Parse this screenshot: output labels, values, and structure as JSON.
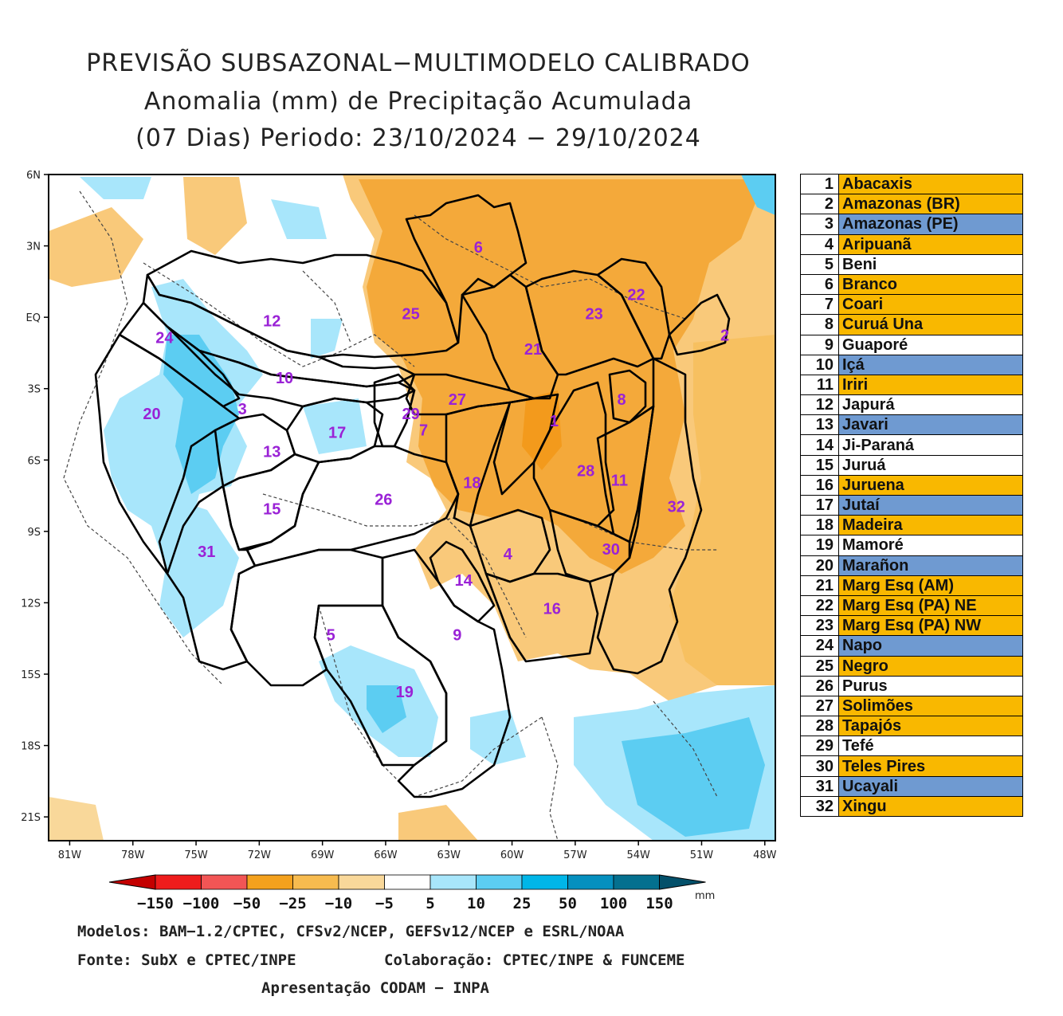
{
  "title": {
    "line1": "PREVISÃO SUBSAZONAL−MULTIMODELO CALIBRADO",
    "line2": "Anomalia (mm) de Precipitação Acumulada",
    "line3": "(07 Dias) Periodo: 23/10/2024 − 29/10/2024"
  },
  "map": {
    "lat_labels": [
      "6N",
      "3N",
      "EQ",
      "3S",
      "6S",
      "9S",
      "12S",
      "15S",
      "18S",
      "21S"
    ],
    "lon_labels": [
      "81W",
      "78W",
      "75W",
      "72W",
      "69W",
      "66W",
      "63W",
      "60W",
      "57W",
      "54W",
      "51W",
      "48W"
    ],
    "basins": [
      {
        "num": "1",
        "lon": -58.0,
        "lat": -4.4
      },
      {
        "num": "2",
        "lon": -49.9,
        "lat": -0.8
      },
      {
        "num": "3",
        "lon": -72.8,
        "lat": -3.9
      },
      {
        "num": "4",
        "lon": -60.2,
        "lat": -10.0
      },
      {
        "num": "5",
        "lon": -68.6,
        "lat": -13.4
      },
      {
        "num": "6",
        "lon": -61.6,
        "lat": 2.9
      },
      {
        "num": "7",
        "lon": -64.2,
        "lat": -4.8
      },
      {
        "num": "8",
        "lon": -54.8,
        "lat": -3.5
      },
      {
        "num": "9",
        "lon": -62.6,
        "lat": -13.4
      },
      {
        "num": "10",
        "lon": -70.8,
        "lat": -2.6
      },
      {
        "num": "11",
        "lon": -54.9,
        "lat": -6.9
      },
      {
        "num": "12",
        "lon": -71.4,
        "lat": -0.2
      },
      {
        "num": "13",
        "lon": -71.4,
        "lat": -5.7
      },
      {
        "num": "14",
        "lon": -62.3,
        "lat": -11.1
      },
      {
        "num": "15",
        "lon": -71.4,
        "lat": -8.1
      },
      {
        "num": "16",
        "lon": -58.1,
        "lat": -12.3
      },
      {
        "num": "17",
        "lon": -68.3,
        "lat": -4.9
      },
      {
        "num": "18",
        "lon": -61.9,
        "lat": -7.0
      },
      {
        "num": "19",
        "lon": -65.1,
        "lat": -15.8
      },
      {
        "num": "20",
        "lon": -77.1,
        "lat": -4.1
      },
      {
        "num": "21",
        "lon": -59.0,
        "lat": -1.4
      },
      {
        "num": "22",
        "lon": -54.1,
        "lat": 0.9
      },
      {
        "num": "23",
        "lon": -56.1,
        "lat": 0.1
      },
      {
        "num": "24",
        "lon": -76.5,
        "lat": -0.9
      },
      {
        "num": "25",
        "lon": -64.8,
        "lat": 0.1
      },
      {
        "num": "26",
        "lon": -66.1,
        "lat": -7.7
      },
      {
        "num": "27",
        "lon": -62.6,
        "lat": -3.5
      },
      {
        "num": "28",
        "lon": -56.5,
        "lat": -6.5
      },
      {
        "num": "29",
        "lon": -64.8,
        "lat": -4.1
      },
      {
        "num": "30",
        "lon": -55.3,
        "lat": -9.8
      },
      {
        "num": "31",
        "lon": -74.5,
        "lat": -9.9
      },
      {
        "num": "32",
        "lon": -52.2,
        "lat": -8.0
      }
    ]
  },
  "legend": [
    {
      "num": "1",
      "name": "Abacaxis",
      "color": "#f9b800"
    },
    {
      "num": "2",
      "name": "Amazonas (BR)",
      "color": "#f9b800"
    },
    {
      "num": "3",
      "name": "Amazonas (PE)",
      "color": "#6f9ad1"
    },
    {
      "num": "4",
      "name": "Aripuanã",
      "color": "#f9b800"
    },
    {
      "num": "5",
      "name": "Beni",
      "color": "#ffffff"
    },
    {
      "num": "6",
      "name": "Branco",
      "color": "#f9b800"
    },
    {
      "num": "7",
      "name": "Coari",
      "color": "#f9b800"
    },
    {
      "num": "8",
      "name": "Curuá Una",
      "color": "#f9b800"
    },
    {
      "num": "9",
      "name": "Guaporé",
      "color": "#ffffff"
    },
    {
      "num": "10",
      "name": "Içá",
      "color": "#6f9ad1"
    },
    {
      "num": "11",
      "name": "Iriri",
      "color": "#f9b800"
    },
    {
      "num": "12",
      "name": "Japurá",
      "color": "#ffffff"
    },
    {
      "num": "13",
      "name": "Javari",
      "color": "#6f9ad1"
    },
    {
      "num": "14",
      "name": "Ji-Paraná",
      "color": "#ffffff"
    },
    {
      "num": "15",
      "name": "Juruá",
      "color": "#ffffff"
    },
    {
      "num": "16",
      "name": "Juruena",
      "color": "#f9b800"
    },
    {
      "num": "17",
      "name": "Jutaí",
      "color": "#6f9ad1"
    },
    {
      "num": "18",
      "name": "Madeira",
      "color": "#f9b800"
    },
    {
      "num": "19",
      "name": "Mamoré",
      "color": "#ffffff"
    },
    {
      "num": "20",
      "name": "Marañon",
      "color": "#6f9ad1"
    },
    {
      "num": "21",
      "name": "Marg Esq (AM)",
      "color": "#f9b800"
    },
    {
      "num": "22",
      "name": "Marg Esq (PA) NE",
      "color": "#f9b800"
    },
    {
      "num": "23",
      "name": "Marg Esq (PA) NW",
      "color": "#f9b800"
    },
    {
      "num": "24",
      "name": "Napo",
      "color": "#6f9ad1"
    },
    {
      "num": "25",
      "name": "Negro",
      "color": "#f9b800"
    },
    {
      "num": "26",
      "name": "Purus",
      "color": "#ffffff"
    },
    {
      "num": "27",
      "name": "Solimões",
      "color": "#f9b800"
    },
    {
      "num": "28",
      "name": "Tapajós",
      "color": "#f9b800"
    },
    {
      "num": "29",
      "name": "Tefé",
      "color": "#ffffff"
    },
    {
      "num": "30",
      "name": "Teles Pires",
      "color": "#f9b800"
    },
    {
      "num": "31",
      "name": "Ucayali",
      "color": "#6f9ad1"
    },
    {
      "num": "32",
      "name": "Xingu",
      "color": "#f9b800"
    }
  ],
  "colorbar": {
    "labels": [
      "−150",
      "−100",
      "−50",
      "−25",
      "−10",
      "−5",
      "5",
      "10",
      "25",
      "50",
      "100",
      "150"
    ],
    "colors": [
      "#c40000",
      "#ee1c1c",
      "#f25555",
      "#f4a11d",
      "#f7bb4f",
      "#f9d89a",
      "#ffffff",
      "#a8e6fb",
      "#5ccdf2",
      "#00b6e8",
      "#0590bf",
      "#04708f",
      "#03506a"
    ],
    "unit": "mm"
  },
  "footer": {
    "line1": "Modelos: BAM−1.2/CPTEC, CFSv2/NCEP, GEFSv12/NCEP e ESRL/NOAA",
    "line2_left": "Fonte: SubX e CPTEC/INPE",
    "line2_right": "Colaboração: CPTEC/INPE & FUNCEME",
    "line3": "Apresentação CODAM − INPA"
  }
}
